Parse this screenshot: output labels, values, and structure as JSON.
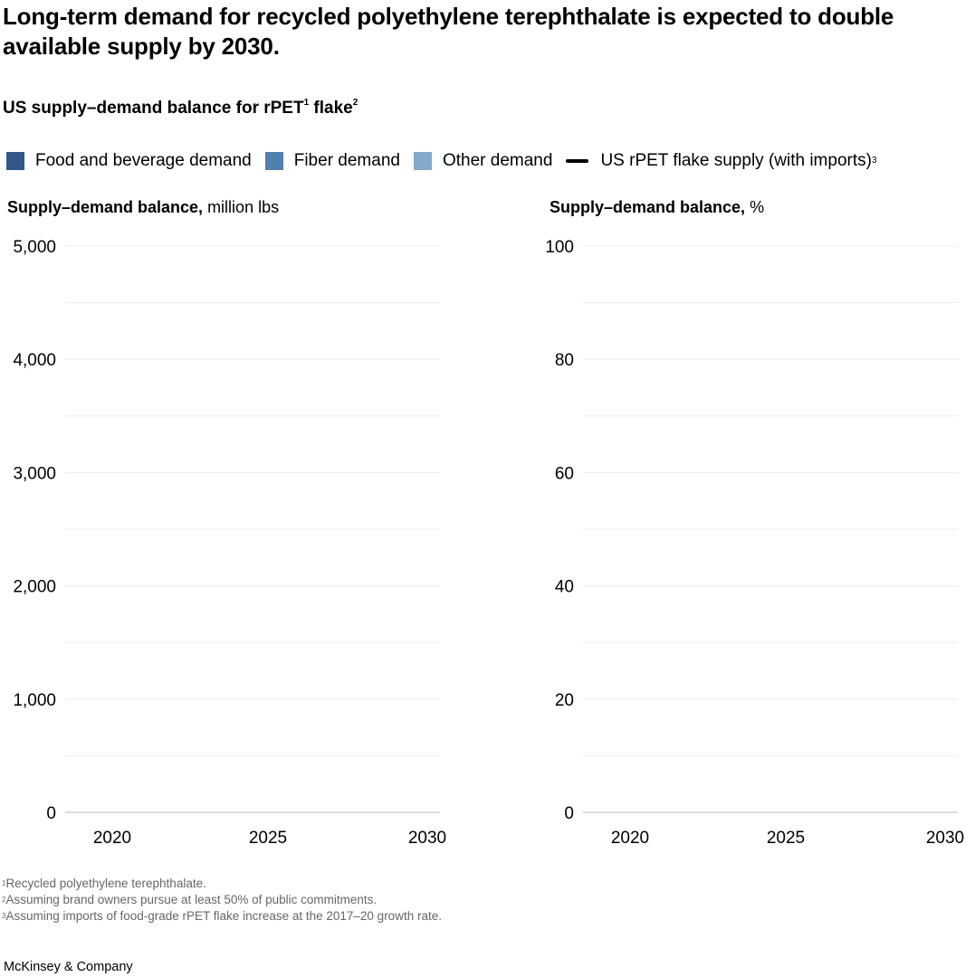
{
  "title": "Long-term demand for recycled polyethylene terephthalate is expected to double available supply by 2030.",
  "subtitle": {
    "text": "US supply–demand balance for rPET",
    "sup1": "1",
    "text2": " flake",
    "sup2": "2"
  },
  "legend": [
    {
      "label": "Food and beverage demand",
      "color": "#30598a",
      "type": "box"
    },
    {
      "label": "Fiber demand",
      "color": "#5080ad",
      "type": "box"
    },
    {
      "label": "Other demand",
      "color": "#84a8cb",
      "type": "box"
    },
    {
      "label": "US rPET flake supply (with imports)",
      "sup": "3",
      "color": "#000000",
      "type": "line"
    }
  ],
  "chart_data": [
    {
      "type": "bar",
      "ylabel_bold": "Supply–demand balance,",
      "ylabel_unit": " million lbs",
      "ylim": [
        0,
        5000
      ],
      "yticks": [
        "0",
        "1,000",
        "2,000",
        "3,000",
        "4,000",
        "5,000"
      ],
      "ytick_values": [
        0,
        1000,
        2000,
        3000,
        4000,
        5000
      ],
      "xticks": [
        "2020",
        "2025",
        "2030"
      ],
      "grid": true,
      "series": []
    },
    {
      "type": "bar",
      "ylabel_bold": "Supply–demand balance,",
      "ylabel_unit": " %",
      "ylim": [
        0,
        100
      ],
      "yticks": [
        "0",
        "20",
        "40",
        "60",
        "80",
        "100"
      ],
      "ytick_values": [
        0,
        20,
        40,
        60,
        80,
        100
      ],
      "xticks": [
        "2020",
        "2025",
        "2030"
      ],
      "grid": true,
      "series": []
    }
  ],
  "footnotes": [
    {
      "sup": "1",
      "text": "Recycled polyethylene terephthalate."
    },
    {
      "sup": "2",
      "text": "Assuming brand owners pursue at least 50% of public commitments."
    },
    {
      "sup": "3",
      "text": "Assuming imports of food-grade rPET flake increase at the 2017–20 growth rate."
    }
  ],
  "brand": "McKinsey & Company"
}
